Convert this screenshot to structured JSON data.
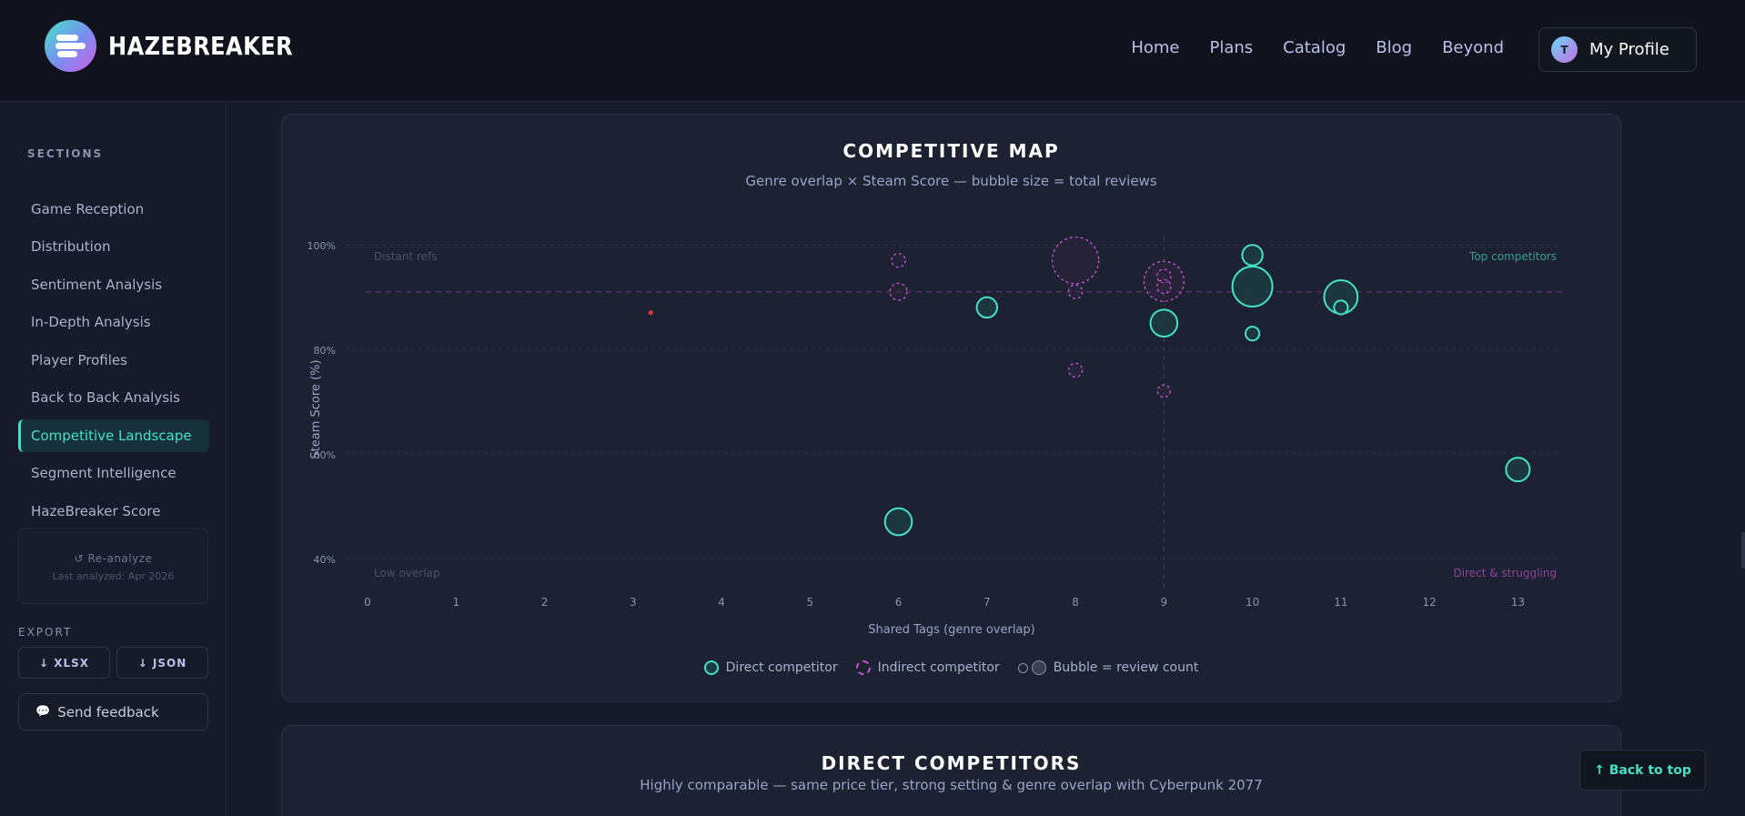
{
  "header": {
    "brand": "HAZEBREAKER",
    "nav": [
      "Home",
      "Plans",
      "Catalog",
      "Blog",
      "Beyond"
    ],
    "profile_initial": "T",
    "profile_label": "My Profile"
  },
  "sidebar": {
    "sections_title": "SECTIONS",
    "items": [
      {
        "label": "Game Reception",
        "active": false
      },
      {
        "label": "Distribution",
        "active": false
      },
      {
        "label": "Sentiment Analysis",
        "active": false
      },
      {
        "label": "In-Depth Analysis",
        "active": false
      },
      {
        "label": "Player Profiles",
        "active": false
      },
      {
        "label": "Back to Back Analysis",
        "active": false
      },
      {
        "label": "Competitive Landscape",
        "active": true
      },
      {
        "label": "Segment Intelligence",
        "active": false
      },
      {
        "label": "HazeBreaker Score",
        "active": false
      }
    ],
    "reanalyze": "↺ Re-analyze",
    "last_analyzed": "Last analyzed: Apr 2026",
    "export_title": "EXPORT",
    "export_xlsx": "↓ XLSX",
    "export_json": "↓ JSON",
    "feedback": "Send feedback"
  },
  "competitive_map": {
    "title": "COMPETITIVE MAP",
    "subtitle": "Genre overlap × Steam Score — bubble size = total reviews",
    "legend": {
      "direct": "Direct competitor",
      "indirect": "Indirect competitor",
      "size": "Bubble = review count"
    }
  },
  "chart_data": {
    "type": "scatter",
    "xlabel": "Shared Tags (genre overlap)",
    "ylabel": "Steam Score (%)",
    "xlim": [
      0,
      13.5
    ],
    "ylim": [
      37,
      100
    ],
    "x_ticks": [
      0,
      1,
      2,
      3,
      4,
      5,
      6,
      7,
      8,
      9,
      10,
      11,
      12,
      13
    ],
    "y_ticks": [
      40,
      60,
      80,
      100
    ],
    "y_tick_labels": [
      "40%",
      "60%",
      "80%",
      "100%"
    ],
    "reference_lines": {
      "x": 9,
      "y": 91
    },
    "quadrant_labels": {
      "top_left": "Distant refs",
      "top_right": "Top competitors",
      "bottom_left": "Low overlap",
      "bottom_right": "Direct & struggling"
    },
    "colors": {
      "direct": "#45e0c8",
      "indirect": "#c457d6",
      "self": "#e03a3a"
    },
    "series": [
      {
        "name": "Direct competitor",
        "points": [
          {
            "x": 7,
            "y": 88,
            "size": 2
          },
          {
            "x": 9,
            "y": 85,
            "size": 3
          },
          {
            "x": 10,
            "y": 98,
            "size": 2
          },
          {
            "x": 10,
            "y": 92,
            "size": 5
          },
          {
            "x": 10,
            "y": 83,
            "size": 1
          },
          {
            "x": 11,
            "y": 90,
            "size": 4
          },
          {
            "x": 11,
            "y": 88,
            "size": 1
          },
          {
            "x": 13,
            "y": 57,
            "size": 2.5
          },
          {
            "x": 6,
            "y": 47,
            "size": 3
          }
        ]
      },
      {
        "name": "Indirect competitor",
        "points": [
          {
            "x": 6,
            "y": 97,
            "size": 1
          },
          {
            "x": 6,
            "y": 91,
            "size": 1.5
          },
          {
            "x": 8,
            "y": 97,
            "size": 6
          },
          {
            "x": 8,
            "y": 91,
            "size": 1
          },
          {
            "x": 8,
            "y": 76,
            "size": 1
          },
          {
            "x": 9,
            "y": 93,
            "size": 5
          },
          {
            "x": 9,
            "y": 94,
            "size": 1
          },
          {
            "x": 9,
            "y": 92,
            "size": 1
          },
          {
            "x": 9,
            "y": 72,
            "size": 0.8
          }
        ]
      },
      {
        "name": "self",
        "points": [
          {
            "x": 3.2,
            "y": 87,
            "size": 0.3
          }
        ]
      }
    ]
  },
  "direct_competitors": {
    "title": "DIRECT COMPETITORS",
    "subtitle": "Highly comparable — same price tier, strong setting & genre overlap with Cyberpunk 2077"
  },
  "back_to_top": "↑ Back to top"
}
